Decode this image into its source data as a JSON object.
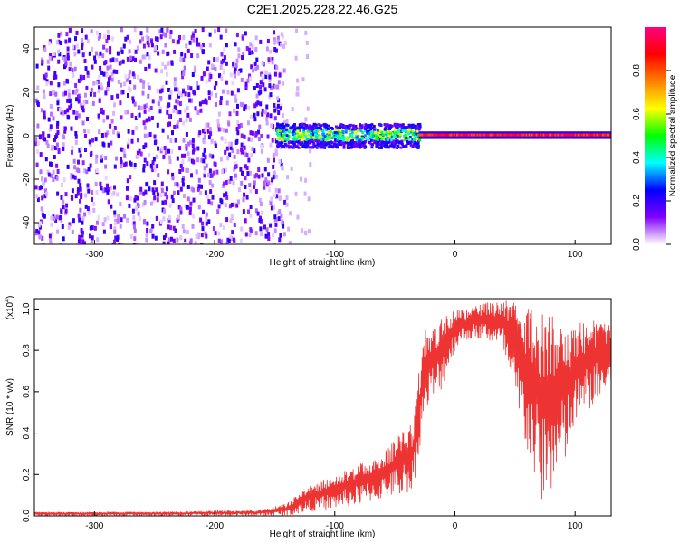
{
  "chart_data": [
    {
      "type": "heatmap",
      "title": "C2E1.2025.228.22.46.G25",
      "xlabel": "Height of straight line (km)",
      "ylabel": "Frequency (Hz)",
      "xlim": [
        -350,
        130
      ],
      "ylim": [
        -50,
        50
      ],
      "x_ticks": [
        -300,
        -200,
        -100,
        0,
        100
      ],
      "y_ticks": [
        -40,
        -20,
        0,
        20,
        40
      ],
      "colorbar": {
        "label": "Normalized spectral amplitude",
        "range": [
          0,
          1
        ],
        "ticks": [
          0.0,
          0.2,
          0.4,
          0.6,
          0.8
        ],
        "colors": [
          "#ffffff",
          "#8000ff",
          "#0000ff",
          "#00ffff",
          "#00ff00",
          "#ffff00",
          "#ff8000",
          "#ff0000",
          "#ff0080"
        ]
      },
      "regions": [
        {
          "x": [
            -350,
            -150
          ],
          "freq": [
            -50,
            50
          ],
          "amplitude": 0.15,
          "description_key": "broadband noise"
        },
        {
          "x": [
            -150,
            -30
          ],
          "freq": [
            -5,
            6
          ],
          "amplitude": 0.4
        },
        {
          "x": [
            -30,
            130
          ],
          "freq": [
            -1.5,
            2
          ],
          "amplitude": 0.85
        }
      ]
    },
    {
      "type": "line",
      "xlabel": "Height of straight line (km)",
      "ylabel": "SNR (10 * v/v)",
      "y_multiplier": "(x10",
      "y_multiplier_exp": "4",
      "xlim": [
        -350,
        130
      ],
      "ylim": [
        0,
        1.05
      ],
      "x_ticks": [
        -300,
        -200,
        -100,
        0,
        100
      ],
      "y_ticks": [
        0.0,
        0.2,
        0.4,
        0.6,
        0.8,
        1.0
      ],
      "color": "#ee3333",
      "envelope": {
        "x": [
          -350,
          -250,
          -160,
          -140,
          -120,
          -100,
          -80,
          -60,
          -45,
          -35,
          -30,
          -25,
          -15,
          -5,
          0,
          10,
          25,
          40,
          50,
          60,
          70,
          80,
          90,
          100,
          110,
          120,
          130
        ],
        "upper": [
          0.02,
          0.02,
          0.03,
          0.06,
          0.15,
          0.2,
          0.25,
          0.3,
          0.4,
          0.45,
          0.7,
          0.9,
          0.95,
          1.0,
          1.0,
          1.0,
          1.03,
          1.04,
          1.04,
          1.03,
          1.0,
          0.97,
          0.94,
          0.93,
          0.94,
          0.95,
          0.93
        ],
        "lower": [
          0.0,
          0.0,
          0.0,
          0.0,
          0.02,
          0.03,
          0.05,
          0.08,
          0.1,
          0.12,
          0.3,
          0.5,
          0.55,
          0.7,
          0.8,
          0.85,
          0.85,
          0.8,
          0.5,
          0.3,
          0.05,
          0.1,
          0.2,
          0.4,
          0.5,
          0.55,
          0.6
        ]
      }
    }
  ]
}
